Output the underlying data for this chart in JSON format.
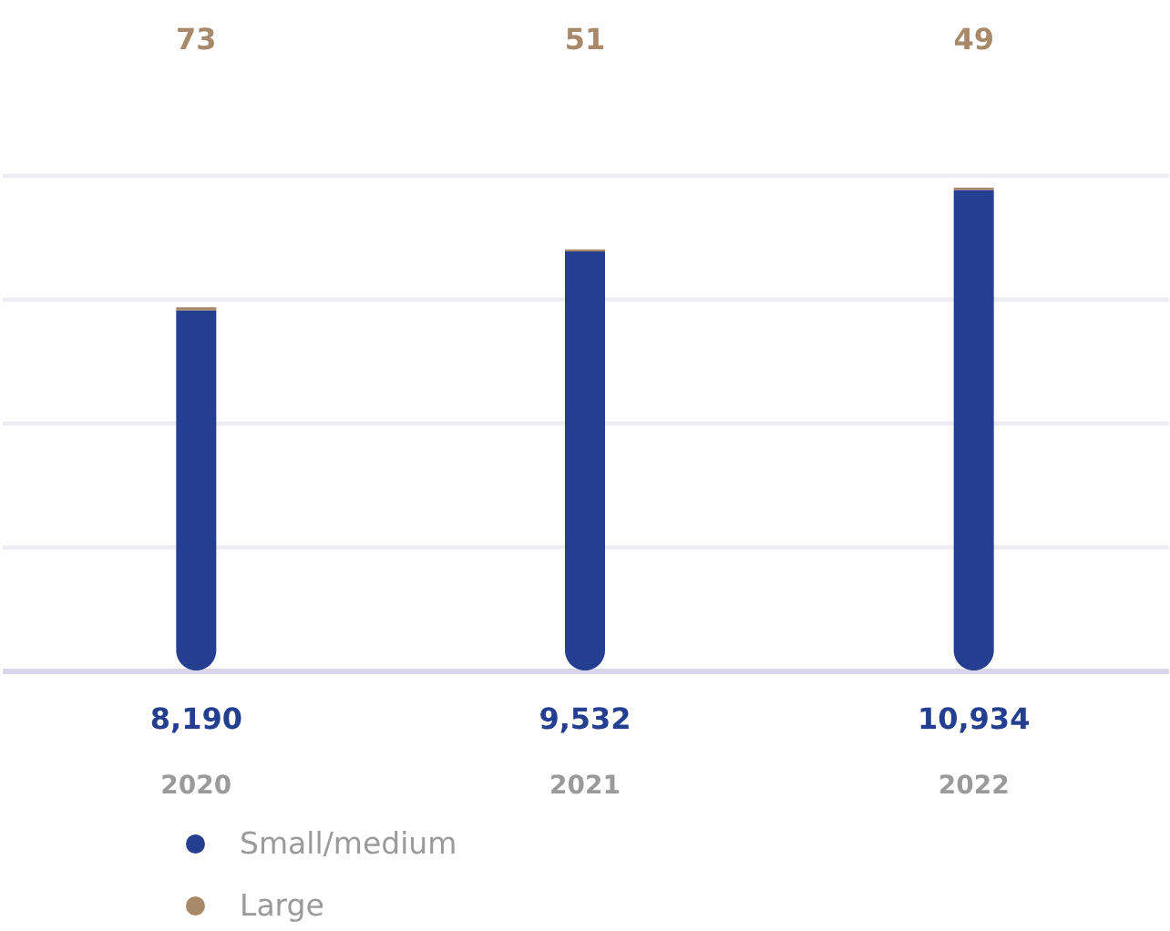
{
  "chart_data": {
    "type": "bar",
    "stacked": true,
    "categories": [
      "2020",
      "2021",
      "2022"
    ],
    "series": [
      {
        "name": "Small/medium",
        "color": "#243f8f",
        "values": [
          8190,
          9532,
          10934
        ],
        "value_labels": [
          "8,190",
          "9,532",
          "10,934"
        ]
      },
      {
        "name": "Large",
        "color": "#a88a6a",
        "values": [
          73,
          51,
          49
        ],
        "value_labels": [
          "73",
          "51",
          "49"
        ]
      }
    ],
    "grid": "y",
    "legend": "bottom",
    "tick_labels": "x"
  }
}
